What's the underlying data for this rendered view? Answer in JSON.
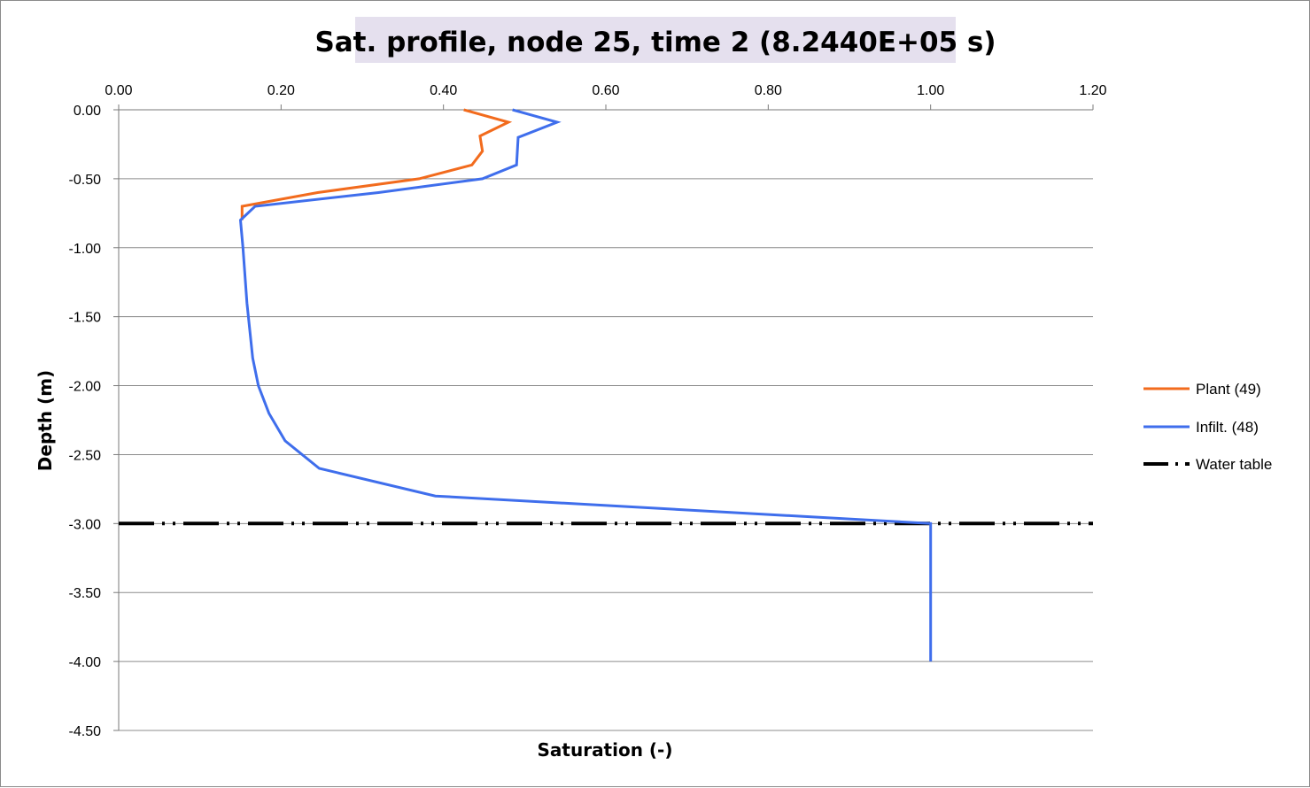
{
  "chart_data": {
    "type": "line",
    "title": "Sat. profile, node 25, time 2 (8.2440E+05 s)",
    "xlabel": "Saturation (-)",
    "ylabel": "Depth (m)",
    "xlim": [
      0,
      1.2
    ],
    "ylim": [
      -4.5,
      0
    ],
    "x_ticks": [
      "0.00",
      "0.20",
      "0.40",
      "0.60",
      "0.80",
      "1.00",
      "1.20"
    ],
    "y_ticks": [
      "0.00",
      "-0.50",
      "-1.00",
      "-1.50",
      "-2.00",
      "-2.50",
      "-3.00",
      "-3.50",
      "-4.00",
      "-4.50"
    ],
    "x_axis_position": "top",
    "grid": "horizontal",
    "legend_position": "right",
    "series": [
      {
        "name": "Plant (49)",
        "color": "#F26B1D",
        "style": "solid",
        "points": [
          [
            0.425,
            0.0
          ],
          [
            0.48,
            -0.09
          ],
          [
            0.445,
            -0.19
          ],
          [
            0.448,
            -0.3
          ],
          [
            0.435,
            -0.4
          ],
          [
            0.37,
            -0.5
          ],
          [
            0.245,
            -0.6
          ],
          [
            0.152,
            -0.7
          ],
          [
            0.152,
            -0.8
          ]
        ]
      },
      {
        "name": "Infilt. (48)",
        "color": "#3F6EEC",
        "style": "solid",
        "points": [
          [
            0.485,
            0.0
          ],
          [
            0.54,
            -0.09
          ],
          [
            0.492,
            -0.2
          ],
          [
            0.49,
            -0.4
          ],
          [
            0.448,
            -0.5
          ],
          [
            0.32,
            -0.6
          ],
          [
            0.168,
            -0.7
          ],
          [
            0.15,
            -0.8
          ],
          [
            0.153,
            -1.0
          ],
          [
            0.158,
            -1.4
          ],
          [
            0.165,
            -1.8
          ],
          [
            0.172,
            -2.0
          ],
          [
            0.185,
            -2.2
          ],
          [
            0.205,
            -2.4
          ],
          [
            0.247,
            -2.6
          ],
          [
            0.39,
            -2.8
          ],
          [
            1.0,
            -3.0
          ],
          [
            1.0,
            -4.0
          ]
        ]
      },
      {
        "name": "Water table",
        "color": "#000000",
        "style": "dash-dot-dot",
        "points": [
          [
            0.0,
            -3.0
          ],
          [
            1.2,
            -3.0
          ]
        ]
      }
    ]
  }
}
